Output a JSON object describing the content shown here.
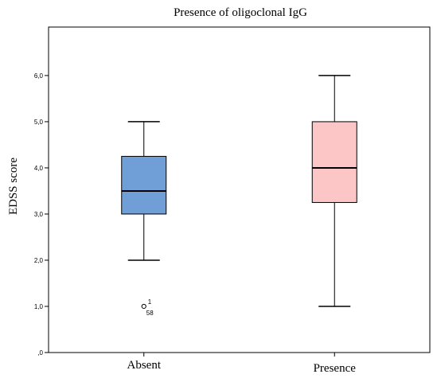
{
  "chart_data": {
    "type": "boxplot",
    "title": "Presence of oligoclonal IgG",
    "ylabel": "EDSS score",
    "xlabel": "",
    "ylim": [
      0,
      7.05
    ],
    "yticks": [
      0,
      1,
      2,
      3,
      4,
      5,
      6
    ],
    "ytick_labels": [
      ",0",
      "1,0",
      "2,0",
      "3,0",
      "4,0",
      "5,0",
      "6,0"
    ],
    "grid": false,
    "categories": [
      "Absent",
      "Presence"
    ],
    "boxes": [
      {
        "name": "Absent",
        "whisker_low": 2.0,
        "q1": 3.0,
        "median": 3.5,
        "q3": 4.25,
        "whisker_high": 5.0,
        "color": "#6f9fd6",
        "outliers": [
          {
            "value": 1.0,
            "label_top": "1",
            "label_bottom": "58"
          }
        ]
      },
      {
        "name": "Presence",
        "whisker_low": 1.0,
        "q1": 3.25,
        "median": 4.0,
        "q3": 5.0,
        "whisker_high": 6.0,
        "color": "#fcc6c6",
        "outliers": []
      }
    ]
  }
}
